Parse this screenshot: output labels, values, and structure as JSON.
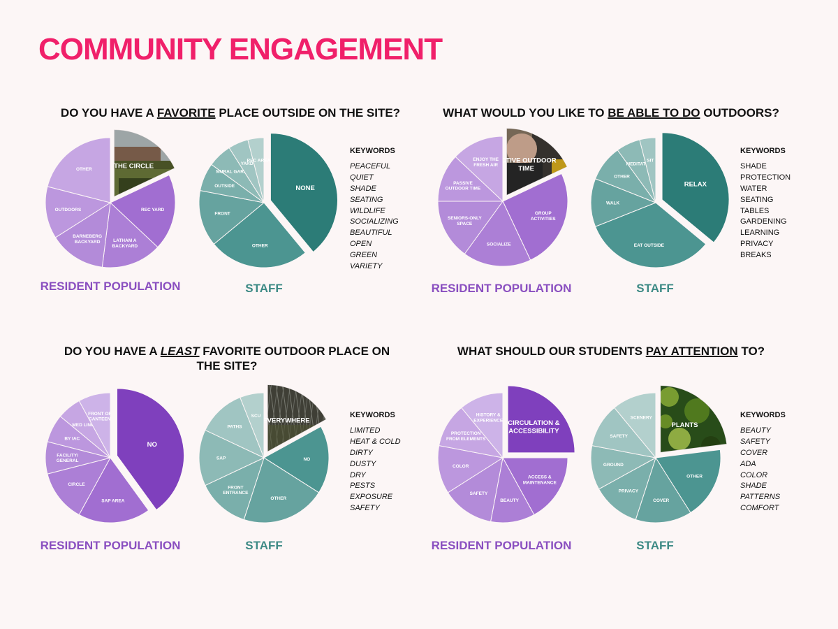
{
  "page": {
    "title": "COMMUNITY ENGAGEMENT"
  },
  "questions": [
    {
      "id": "q1",
      "title_parts": [
        "DO YOU HAVE A ",
        "FAVORITE",
        " PLACE OUTSIDE ON THE SITE?"
      ],
      "resident_caption": "RESIDENT POPULATION",
      "staff_caption": "STAFF",
      "keywords_title": "KEYWORDS",
      "keywords": [
        "PEACEFUL",
        "QUIET",
        "SHADE",
        "SEATING",
        "WILDLIFE",
        "SOCIALIZING",
        "BEAUTIFUL",
        "OPEN",
        "GREEN",
        "VARIETY"
      ]
    },
    {
      "id": "q2",
      "title_parts": [
        "WHAT WOULD YOU LIKE TO ",
        "BE ABLE TO DO",
        " OUTDOORS?"
      ],
      "resident_caption": "RESIDENT POPULATION",
      "staff_caption": "STAFF",
      "keywords_title": "KEYWORDS",
      "keywords": [
        "SHADE",
        "PROTECTION",
        "WATER",
        "SEATING",
        "TABLES",
        "GARDENING",
        "LEARNING",
        "PRIVACY",
        "BREAKS"
      ]
    },
    {
      "id": "q3",
      "title_parts": [
        "DO YOU HAVE A ",
        "LEAST",
        " FAVORITE OUTDOOR PLACE ON",
        "THE SITE?"
      ],
      "resident_caption": "RESIDENT POPULATION",
      "staff_caption": "STAFF",
      "keywords_title": "KEYWORDS",
      "keywords": [
        "LIMITED",
        "HEAT & COLD",
        "DIRTY",
        "DUSTY",
        "DRY",
        "PESTS",
        "EXPOSURE",
        "SAFETY"
      ]
    },
    {
      "id": "q4",
      "title_parts": [
        "WHAT SHOULD OUR STUDENTS ",
        "PAY ATTENTION",
        " TO?"
      ],
      "resident_caption": "RESIDENT POPULATION",
      "staff_caption": "STAFF",
      "keywords_title": "KEYWORDS",
      "keywords": [
        "BEAUTY",
        "SAFETY",
        "COVER",
        "ADA",
        "COLOR",
        "SHADE",
        "PATTERNS",
        "COMFORT"
      ]
    }
  ],
  "colors": {
    "title": "#f0206a",
    "resident_caption": "#8a4fc0",
    "staff_caption": "#3d8a85",
    "photo_grass": "#6f7d3c",
    "photo_dark": "#4a4a40",
    "photo_plants": "#2f5a1e",
    "photo_portrait": "#8a7a66"
  },
  "chart_data": [
    {
      "type": "pie",
      "id": "q1-resident",
      "slices": [
        {
          "label": "THE CIRCLE",
          "value": 18,
          "exploded": true,
          "photo": "grass"
        },
        {
          "label": "REC YARD",
          "value": 19
        },
        {
          "label": "LATHAM A BACKYARD",
          "value": 15
        },
        {
          "label": "BARNEBERG BACKYARD",
          "value": 14
        },
        {
          "label": "OUTDOORS",
          "value": 13
        },
        {
          "label": "OTHER",
          "value": 21
        }
      ]
    },
    {
      "type": "pie",
      "id": "q1-staff",
      "slices": [
        {
          "label": "NONE",
          "value": 39,
          "exploded": true
        },
        {
          "label": "OTHER",
          "value": 25
        },
        {
          "label": "FRONT",
          "value": 14
        },
        {
          "label": "OUTSIDE",
          "value": 7
        },
        {
          "label": "MURAL GARDEN",
          "value": 6
        },
        {
          "label": "YARD",
          "value": 5
        },
        {
          "label": "REC AREA",
          "value": 4
        }
      ]
    },
    {
      "type": "pie",
      "id": "q2-resident",
      "slices": [
        {
          "label": "ACTIVE OUTDOOR TIME",
          "value": 18,
          "exploded": true,
          "photo": "portrait"
        },
        {
          "label": "GROUP ACTIVITIES",
          "value": 25
        },
        {
          "label": "SOCIALIZE",
          "value": 17
        },
        {
          "label": "SENIORS-ONLY SPACE",
          "value": 15
        },
        {
          "label": "PASSIVE OUTDOOR TIME",
          "value": 12
        },
        {
          "label": "ENJOY THE FRESH AIR",
          "value": 13
        }
      ]
    },
    {
      "type": "pie",
      "id": "q2-staff",
      "slices": [
        {
          "label": "RELAX",
          "value": 36,
          "exploded": true
        },
        {
          "label": "EAT OUTSIDE",
          "value": 33
        },
        {
          "label": "WALK",
          "value": 12
        },
        {
          "label": "OTHER",
          "value": 9
        },
        {
          "label": "MEDITATE",
          "value": 6
        },
        {
          "label": "SIT",
          "value": 4
        }
      ]
    },
    {
      "type": "pie",
      "id": "q3-resident",
      "slices": [
        {
          "label": "NO",
          "value": 40,
          "exploded": true
        },
        {
          "label": "SAP AREA",
          "value": 18
        },
        {
          "label": "CIRCLE",
          "value": 13
        },
        {
          "label": "FACILITY/ GENERAL",
          "value": 8
        },
        {
          "label": "BY IAC",
          "value": 7
        },
        {
          "label": "MED LINE",
          "value": 6
        },
        {
          "label": "FRONT OF CANTEEN",
          "value": 8
        }
      ]
    },
    {
      "type": "pie",
      "id": "q3-staff",
      "slices": [
        {
          "label": "EVERYWHERE",
          "value": 17,
          "exploded": true,
          "photo": "fence"
        },
        {
          "label": "NO",
          "value": 17
        },
        {
          "label": "OTHER",
          "value": 21
        },
        {
          "label": "FRONT ENTRANCE",
          "value": 13
        },
        {
          "label": "SAP",
          "value": 14
        },
        {
          "label": "PATHS",
          "value": 12
        },
        {
          "label": "SCU",
          "value": 6
        }
      ]
    },
    {
      "type": "pie",
      "id": "q4-resident",
      "slices": [
        {
          "label": "CIRCULATION & ACCESSIBILITY",
          "value": 25,
          "exploded": true
        },
        {
          "label": "ACCESS & MAINTENANCE",
          "value": 17
        },
        {
          "label": "BEAUTY",
          "value": 11
        },
        {
          "label": "SAFETY",
          "value": 13
        },
        {
          "label": "COLOR",
          "value": 12
        },
        {
          "label": "PROTECTION FROM ELEMENTS",
          "value": 11
        },
        {
          "label": "HISTORY & EXPERIENCE",
          "value": 11
        }
      ]
    },
    {
      "type": "pie",
      "id": "q4-staff",
      "slices": [
        {
          "label": "PLANTS",
          "value": 23,
          "exploded": true,
          "photo": "plants"
        },
        {
          "label": "OTHER",
          "value": 18
        },
        {
          "label": "COVER",
          "value": 14
        },
        {
          "label": "PRIVACY",
          "value": 12
        },
        {
          "label": "GROUND",
          "value": 11
        },
        {
          "label": "SAFETY",
          "value": 11
        },
        {
          "label": "SCENERY",
          "value": 11
        }
      ]
    }
  ]
}
